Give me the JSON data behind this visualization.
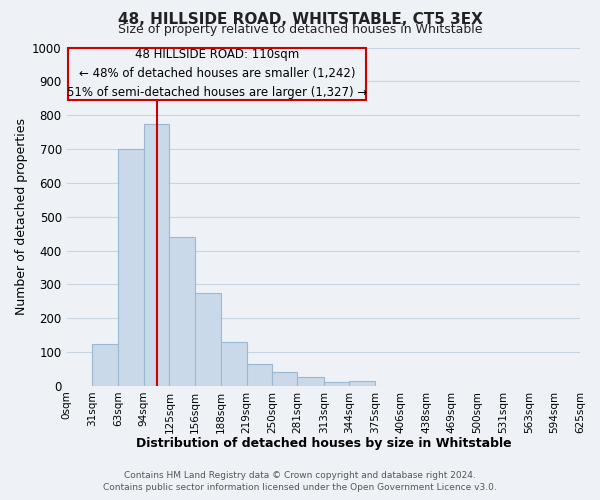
{
  "title": "48, HILLSIDE ROAD, WHITSTABLE, CT5 3EX",
  "subtitle": "Size of property relative to detached houses in Whitstable",
  "xlabel": "Distribution of detached houses by size in Whitstable",
  "ylabel": "Number of detached properties",
  "footer_line1": "Contains HM Land Registry data © Crown copyright and database right 2024.",
  "footer_line2": "Contains public sector information licensed under the Open Government Licence v3.0.",
  "bin_edges": [
    0,
    31,
    63,
    94,
    125,
    156,
    188,
    219,
    250,
    281,
    313,
    344,
    375,
    406,
    438,
    469,
    500,
    531,
    563,
    594,
    625
  ],
  "bar_heights": [
    0,
    125,
    700,
    775,
    440,
    275,
    130,
    65,
    40,
    25,
    10,
    15,
    0,
    0,
    0,
    0,
    0,
    0,
    0,
    0
  ],
  "bar_color": "#c9d9ea",
  "bar_edge_color": "#9ab8d0",
  "vline_x": 110,
  "vline_color": "#cc0000",
  "annot_line1": "48 HILLSIDE ROAD: 110sqm",
  "annot_line2": "← 48% of detached houses are smaller (1,242)",
  "annot_line3": "51% of semi-detached houses are larger (1,327) →",
  "annot_box_color": "#cc0000",
  "annot_fontsize": 8.5,
  "ylim": [
    0,
    1000
  ],
  "tick_labels": [
    "0sqm",
    "31sqm",
    "63sqm",
    "94sqm",
    "125sqm",
    "156sqm",
    "188sqm",
    "219sqm",
    "250sqm",
    "281sqm",
    "313sqm",
    "344sqm",
    "375sqm",
    "406sqm",
    "438sqm",
    "469sqm",
    "500sqm",
    "531sqm",
    "563sqm",
    "594sqm",
    "625sqm"
  ],
  "grid_color": "#c8d4df",
  "bg_color": "#eef2f7"
}
